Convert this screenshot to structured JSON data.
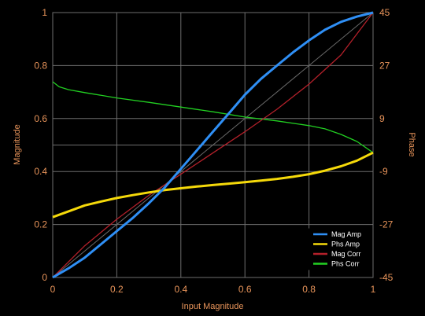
{
  "chart_data": {
    "type": "line",
    "xlabel": "Input Magnitude",
    "ylabel_left": "Magnitude",
    "ylabel_right": "Phase",
    "xlim": [
      0,
      1
    ],
    "ylim_left": [
      0,
      1
    ],
    "ylim_right": [
      -45,
      45
    ],
    "x_ticks": [
      "0",
      "0.2",
      "0.4",
      "0.6",
      "0.8",
      "1"
    ],
    "y_left_ticks": [
      "0",
      "0.2",
      "0.4",
      "0.6",
      "0.8",
      "1"
    ],
    "y_right_ticks": [
      "-45",
      "-27",
      "-9",
      "9",
      "27",
      "45"
    ],
    "grid": true,
    "legend_position": "bottom-right",
    "series": [
      {
        "name": "Mag Amp",
        "color": "#2f8ff5",
        "axis": "left",
        "x": [
          0,
          0.05,
          0.1,
          0.15,
          0.2,
          0.25,
          0.3,
          0.35,
          0.4,
          0.45,
          0.5,
          0.55,
          0.6,
          0.65,
          0.7,
          0.75,
          0.8,
          0.85,
          0.9,
          0.95,
          1.0
        ],
        "y": [
          0,
          0.035,
          0.075,
          0.125,
          0.175,
          0.225,
          0.28,
          0.34,
          0.41,
          0.48,
          0.55,
          0.62,
          0.69,
          0.75,
          0.8,
          0.85,
          0.895,
          0.935,
          0.965,
          0.985,
          1.0
        ]
      },
      {
        "name": "Phs Amp",
        "color": "#f5d90a",
        "axis": "right",
        "x": [
          0,
          0.05,
          0.1,
          0.15,
          0.2,
          0.25,
          0.3,
          0.35,
          0.4,
          0.45,
          0.5,
          0.55,
          0.6,
          0.65,
          0.7,
          0.75,
          0.8,
          0.85,
          0.9,
          0.95,
          1.0
        ],
        "y": [
          -24.5,
          -22.5,
          -20.5,
          -19.2,
          -18.0,
          -17.0,
          -16.1,
          -15.3,
          -14.7,
          -14.1,
          -13.6,
          -13.1,
          -12.6,
          -12.1,
          -11.5,
          -10.8,
          -9.9,
          -8.7,
          -7.2,
          -5.3,
          -2.6
        ]
      },
      {
        "name": "Mag Corr",
        "color": "#b3202a",
        "axis": "left",
        "x": [
          0,
          0.1,
          0.2,
          0.3,
          0.4,
          0.5,
          0.6,
          0.7,
          0.8,
          0.9,
          1.0
        ],
        "y": [
          0,
          0.12,
          0.22,
          0.31,
          0.39,
          0.47,
          0.55,
          0.635,
          0.73,
          0.84,
          1.0
        ]
      },
      {
        "name": "Phs Corr",
        "color": "#22d022",
        "axis": "right",
        "x": [
          0,
          0.02,
          0.05,
          0.1,
          0.2,
          0.3,
          0.4,
          0.5,
          0.6,
          0.7,
          0.8,
          0.85,
          0.9,
          0.95,
          1.0
        ],
        "y": [
          21.5,
          19.8,
          18.8,
          17.8,
          16.0,
          14.5,
          12.9,
          11.3,
          9.5,
          8.2,
          6.6,
          5.5,
          3.6,
          1.2,
          -2.6
        ]
      }
    ],
    "reference_line": {
      "x": [
        0,
        1
      ],
      "y": [
        0,
        1
      ],
      "color": "#6a6a6a"
    }
  }
}
